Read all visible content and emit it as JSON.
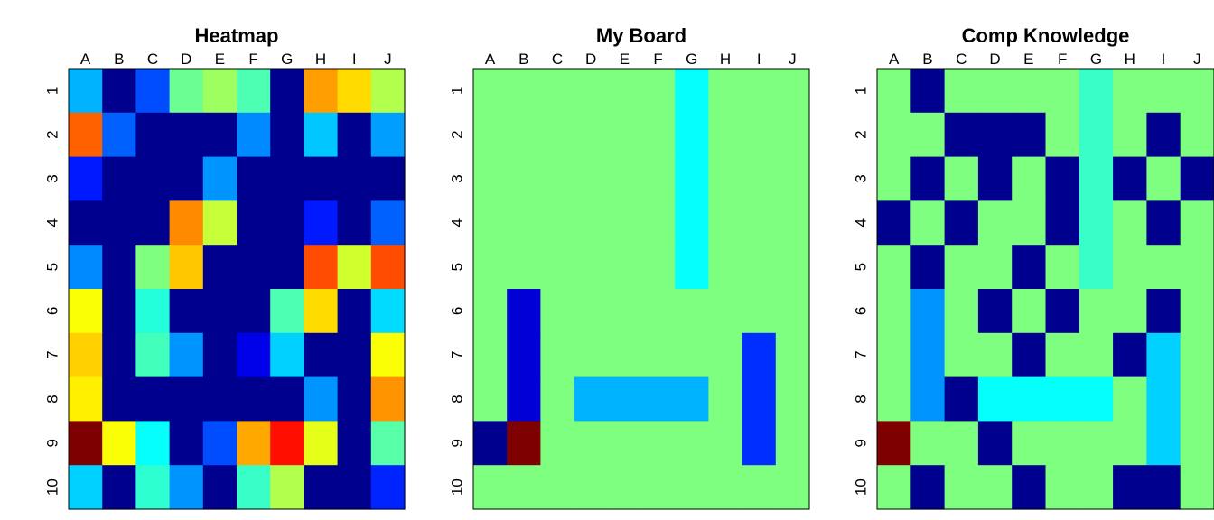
{
  "chart_data": [
    {
      "type": "heatmap",
      "title": "Heatmap",
      "x_categories": [
        "A",
        "B",
        "C",
        "D",
        "E",
        "F",
        "G",
        "H",
        "I",
        "J"
      ],
      "y_categories": [
        "1",
        "2",
        "3",
        "4",
        "5",
        "6",
        "7",
        "8",
        "9",
        "10"
      ],
      "colormap": "jet",
      "value_range": [
        0,
        1
      ],
      "grid": false,
      "values": [
        [
          0.3,
          0.0,
          0.2,
          0.48,
          0.53,
          0.45,
          0.0,
          0.72,
          0.66,
          0.55
        ],
        [
          0.78,
          0.22,
          0.0,
          0.0,
          0.0,
          0.26,
          0.0,
          0.32,
          0.0,
          0.28
        ],
        [
          0.15,
          0.0,
          0.0,
          0.0,
          0.27,
          0.0,
          0.0,
          0.0,
          0.0,
          0.0
        ],
        [
          0.0,
          0.0,
          0.0,
          0.74,
          0.57,
          0.0,
          0.0,
          0.15,
          0.0,
          0.22
        ],
        [
          0.26,
          0.0,
          0.5,
          0.68,
          0.0,
          0.0,
          0.0,
          0.8,
          0.58,
          0.8
        ],
        [
          0.62,
          0.0,
          0.41,
          0.0,
          0.0,
          0.0,
          0.45,
          0.66,
          0.0,
          0.34
        ],
        [
          0.67,
          0.0,
          0.44,
          0.27,
          0.0,
          0.1,
          0.33,
          0.0,
          0.0,
          0.62
        ],
        [
          0.64,
          0.0,
          0.0,
          0.0,
          0.0,
          0.0,
          0.0,
          0.27,
          0.0,
          0.73
        ],
        [
          1.0,
          0.62,
          0.38,
          0.0,
          0.2,
          0.71,
          0.86,
          0.6,
          0.0,
          0.46
        ],
        [
          0.33,
          0.0,
          0.42,
          0.27,
          0.0,
          0.43,
          0.55,
          0.0,
          0.0,
          0.16
        ]
      ]
    },
    {
      "type": "heatmap",
      "title": "My Board",
      "x_categories": [
        "A",
        "B",
        "C",
        "D",
        "E",
        "F",
        "G",
        "H",
        "I",
        "J"
      ],
      "y_categories": [
        "1",
        "2",
        "3",
        "4",
        "5",
        "6",
        "7",
        "8",
        "9",
        "10"
      ],
      "colormap": "jet",
      "value_range": [
        0,
        1
      ],
      "grid": false,
      "values": [
        [
          0.5,
          0.5,
          0.5,
          0.5,
          0.5,
          0.5,
          0.38,
          0.5,
          0.5,
          0.5
        ],
        [
          0.5,
          0.5,
          0.5,
          0.5,
          0.5,
          0.5,
          0.38,
          0.5,
          0.5,
          0.5
        ],
        [
          0.5,
          0.5,
          0.5,
          0.5,
          0.5,
          0.5,
          0.38,
          0.5,
          0.5,
          0.5
        ],
        [
          0.5,
          0.5,
          0.5,
          0.5,
          0.5,
          0.5,
          0.38,
          0.5,
          0.5,
          0.5
        ],
        [
          0.5,
          0.5,
          0.5,
          0.5,
          0.5,
          0.5,
          0.38,
          0.5,
          0.5,
          0.5
        ],
        [
          0.5,
          0.08,
          0.5,
          0.5,
          0.5,
          0.5,
          0.5,
          0.5,
          0.5,
          0.5
        ],
        [
          0.5,
          0.08,
          0.5,
          0.5,
          0.5,
          0.5,
          0.5,
          0.5,
          0.17,
          0.5
        ],
        [
          0.5,
          0.08,
          0.5,
          0.3,
          0.3,
          0.3,
          0.3,
          0.5,
          0.17,
          0.5
        ],
        [
          0.0,
          1.0,
          0.5,
          0.5,
          0.5,
          0.5,
          0.5,
          0.5,
          0.17,
          0.5
        ],
        [
          0.5,
          0.5,
          0.5,
          0.5,
          0.5,
          0.5,
          0.5,
          0.5,
          0.5,
          0.5
        ]
      ]
    },
    {
      "type": "heatmap",
      "title": "Comp Knowledge",
      "x_categories": [
        "A",
        "B",
        "C",
        "D",
        "E",
        "F",
        "G",
        "H",
        "I",
        "J"
      ],
      "y_categories": [
        "1",
        "2",
        "3",
        "4",
        "5",
        "6",
        "7",
        "8",
        "9",
        "10"
      ],
      "colormap": "jet",
      "value_range": [
        0,
        1
      ],
      "grid": false,
      "values": [
        [
          0.5,
          0.0,
          0.5,
          0.5,
          0.5,
          0.5,
          0.43,
          0.5,
          0.5,
          0.5
        ],
        [
          0.5,
          0.5,
          0.0,
          0.0,
          0.0,
          0.5,
          0.43,
          0.5,
          0.0,
          0.5
        ],
        [
          0.5,
          0.0,
          0.5,
          0.0,
          0.5,
          0.0,
          0.43,
          0.0,
          0.5,
          0.0
        ],
        [
          0.0,
          0.5,
          0.0,
          0.5,
          0.5,
          0.0,
          0.43,
          0.5,
          0.0,
          0.5
        ],
        [
          0.5,
          0.0,
          0.5,
          0.5,
          0.0,
          0.5,
          0.43,
          0.5,
          0.5,
          0.5
        ],
        [
          0.5,
          0.27,
          0.5,
          0.0,
          0.5,
          0.0,
          0.5,
          0.5,
          0.0,
          0.5
        ],
        [
          0.5,
          0.27,
          0.5,
          0.5,
          0.0,
          0.5,
          0.5,
          0.0,
          0.33,
          0.5
        ],
        [
          0.5,
          0.27,
          0.0,
          0.38,
          0.38,
          0.38,
          0.38,
          0.5,
          0.33,
          0.5
        ],
        [
          1.0,
          0.5,
          0.5,
          0.0,
          0.5,
          0.5,
          0.5,
          0.5,
          0.33,
          0.5
        ],
        [
          0.5,
          0.0,
          0.5,
          0.5,
          0.0,
          0.5,
          0.5,
          0.0,
          0.0,
          0.5
        ]
      ]
    }
  ]
}
